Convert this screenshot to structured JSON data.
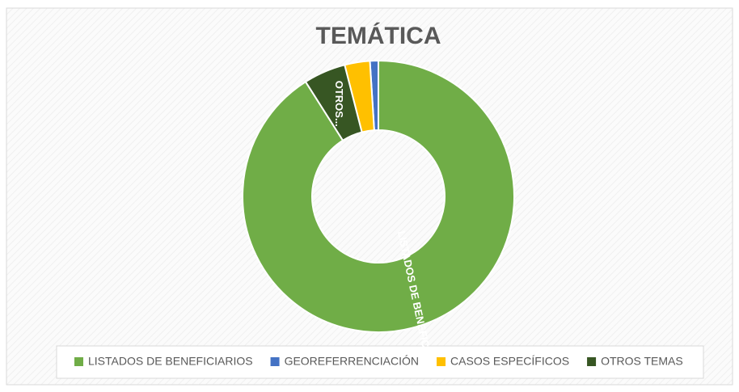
{
  "chart_data": {
    "type": "doughnut",
    "title": "TEMÁTICA",
    "categories": [
      "LISTADOS DE BENEFICIARIOS",
      "GEOREFERRENCIACIÓN",
      "CASOS ESPECÍFICOS",
      "OTROS TEMAS"
    ],
    "values": [
      91,
      1,
      3,
      5
    ],
    "colors": [
      "#70ad47",
      "#4472c4",
      "#ffc000",
      "#375623"
    ],
    "data_labels": [
      "LISTADOS DE BENEFICI...",
      null,
      null,
      "OTROS..."
    ],
    "legend": "bottom"
  }
}
